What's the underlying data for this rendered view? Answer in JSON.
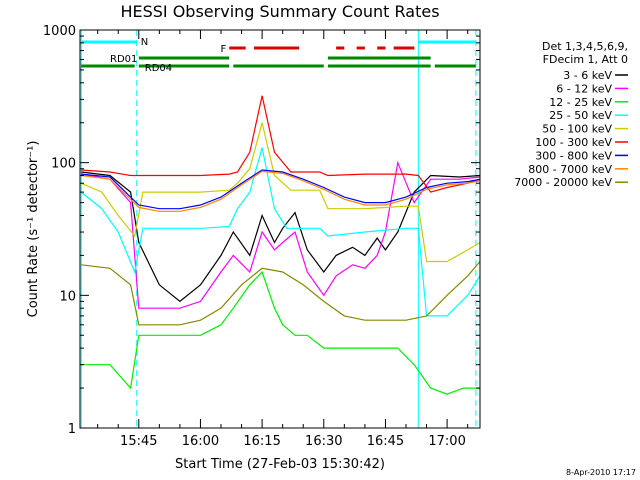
{
  "chart_data": {
    "type": "line",
    "title": "HESSI Observing Summary Count Rates",
    "xlabel": "Start Time (27-Feb-03 15:30:42)",
    "ylabel": "Count Rate (s⁻¹ detector⁻¹)",
    "yscale": "log",
    "ylim": [
      1,
      1000
    ],
    "xlim": [
      "15:30:42",
      "17:08"
    ],
    "grid": false,
    "legend_position": "right",
    "footer": "8-Apr-2010 17:17",
    "x_ticks": [
      "15:45",
      "16:00",
      "16:15",
      "16:30",
      "16:45",
      "17:00"
    ],
    "y_ticks": [
      "1",
      "10",
      "100",
      "1000"
    ],
    "legend_header": [
      "Det 1,3,4,5,6,9,",
      "FDecim 1, Att 0"
    ],
    "annotations": {
      "N": "N",
      "RD01": "RD01",
      "RD04": "RD04",
      "F": "F"
    },
    "series": [
      {
        "name": "3 - 6 keV",
        "color": "#000000",
        "points": [
          [
            "15:31",
            85
          ],
          [
            "15:38",
            80
          ],
          [
            "15:43",
            60
          ],
          [
            "15:45",
            25
          ],
          [
            "15:50",
            12
          ],
          [
            "15:55",
            9
          ],
          [
            "16:00",
            12
          ],
          [
            "16:05",
            20
          ],
          [
            "16:08",
            30
          ],
          [
            "16:12",
            20
          ],
          [
            "16:15",
            40
          ],
          [
            "16:18",
            25
          ],
          [
            "16:20",
            32
          ],
          [
            "16:23",
            42
          ],
          [
            "16:26",
            22
          ],
          [
            "16:30",
            15
          ],
          [
            "16:33",
            20
          ],
          [
            "16:37",
            23
          ],
          [
            "16:40",
            20
          ],
          [
            "16:43",
            27
          ],
          [
            "16:45",
            22
          ],
          [
            "16:48",
            30
          ],
          [
            "16:52",
            60
          ],
          [
            "16:56",
            80
          ],
          [
            "17:03",
            78
          ],
          [
            "17:08",
            80
          ]
        ]
      },
      {
        "name": "6 - 12 keV",
        "color": "#ff00ff",
        "points": [
          [
            "15:31",
            82
          ],
          [
            "15:38",
            75
          ],
          [
            "15:43",
            50
          ],
          [
            "15:45",
            8
          ],
          [
            "15:50",
            8
          ],
          [
            "15:55",
            8
          ],
          [
            "16:00",
            9
          ],
          [
            "16:05",
            15
          ],
          [
            "16:08",
            20
          ],
          [
            "16:12",
            15
          ],
          [
            "16:15",
            30
          ],
          [
            "16:18",
            22
          ],
          [
            "16:20",
            25
          ],
          [
            "16:23",
            30
          ],
          [
            "16:26",
            15
          ],
          [
            "16:30",
            10
          ],
          [
            "16:33",
            14
          ],
          [
            "16:37",
            17
          ],
          [
            "16:40",
            16
          ],
          [
            "16:43",
            20
          ],
          [
            "16:45",
            30
          ],
          [
            "16:48",
            100
          ],
          [
            "16:52",
            50
          ],
          [
            "16:56",
            75
          ],
          [
            "17:03",
            75
          ],
          [
            "17:08",
            78
          ]
        ]
      },
      {
        "name": "12 - 25 keV",
        "color": "#00ee00",
        "points": [
          [
            "15:31",
            3
          ],
          [
            "15:38",
            3
          ],
          [
            "15:43",
            2
          ],
          [
            "15:45",
            5
          ],
          [
            "15:50",
            5
          ],
          [
            "15:55",
            5
          ],
          [
            "16:00",
            5
          ],
          [
            "16:05",
            6
          ],
          [
            "16:08",
            8
          ],
          [
            "16:12",
            12
          ],
          [
            "16:15",
            15
          ],
          [
            "16:18",
            8
          ],
          [
            "16:20",
            6
          ],
          [
            "16:23",
            5
          ],
          [
            "16:26",
            5
          ],
          [
            "16:30",
            4
          ],
          [
            "16:35",
            4
          ],
          [
            "16:40",
            4
          ],
          [
            "16:45",
            4
          ],
          [
            "16:48",
            4
          ],
          [
            "16:52",
            3
          ],
          [
            "16:56",
            2
          ],
          [
            "17:00",
            1.8
          ],
          [
            "17:04",
            2
          ],
          [
            "17:08",
            2
          ]
        ]
      },
      {
        "name": "25 - 50 keV",
        "color": "#00ffff",
        "points": [
          [
            "15:31",
            60
          ],
          [
            "15:36",
            45
          ],
          [
            "15:40",
            30
          ],
          [
            "15:44",
            15
          ],
          [
            "15:46",
            32
          ],
          [
            "15:55",
            32
          ],
          [
            "16:00",
            32
          ],
          [
            "16:07",
            33
          ],
          [
            "16:09",
            45
          ],
          [
            "16:12",
            60
          ],
          [
            "16:15",
            130
          ],
          [
            "16:18",
            45
          ],
          [
            "16:21",
            32
          ],
          [
            "16:29",
            32
          ],
          [
            "16:31",
            28
          ],
          [
            "16:40",
            30
          ],
          [
            "16:50",
            32
          ],
          [
            "16:53",
            32
          ],
          [
            "16:55",
            7
          ],
          [
            "17:00",
            7
          ],
          [
            "17:05",
            10
          ],
          [
            "17:08",
            14
          ]
        ]
      },
      {
        "name": "50 - 100 keV",
        "color": "#cccc00",
        "points": [
          [
            "15:31",
            70
          ],
          [
            "15:36",
            60
          ],
          [
            "15:40",
            40
          ],
          [
            "15:44",
            28
          ],
          [
            "15:46",
            60
          ],
          [
            "15:55",
            60
          ],
          [
            "16:00",
            60
          ],
          [
            "16:07",
            62
          ],
          [
            "16:09",
            70
          ],
          [
            "16:12",
            90
          ],
          [
            "16:15",
            200
          ],
          [
            "16:18",
            80
          ],
          [
            "16:22",
            62
          ],
          [
            "16:29",
            62
          ],
          [
            "16:31",
            45
          ],
          [
            "16:40",
            45
          ],
          [
            "16:50",
            47
          ],
          [
            "16:53",
            47
          ],
          [
            "16:55",
            18
          ],
          [
            "17:00",
            18
          ],
          [
            "17:05",
            22
          ],
          [
            "17:08",
            25
          ]
        ]
      },
      {
        "name": "100 - 300 keV",
        "color": "#ff0000",
        "points": [
          [
            "15:31",
            88
          ],
          [
            "15:38",
            85
          ],
          [
            "15:43",
            80
          ],
          [
            "15:46",
            80
          ],
          [
            "15:55",
            80
          ],
          [
            "16:00",
            80
          ],
          [
            "16:07",
            82
          ],
          [
            "16:09",
            85
          ],
          [
            "16:12",
            120
          ],
          [
            "16:15",
            320
          ],
          [
            "16:18",
            120
          ],
          [
            "16:22",
            85
          ],
          [
            "16:29",
            85
          ],
          [
            "16:31",
            80
          ],
          [
            "16:40",
            82
          ],
          [
            "16:50",
            82
          ],
          [
            "16:53",
            80
          ],
          [
            "16:56",
            60
          ],
          [
            "17:00",
            65
          ],
          [
            "17:05",
            70
          ],
          [
            "17:08",
            75
          ]
        ]
      },
      {
        "name": "300 - 800 keV",
        "color": "#0000ff",
        "points": [
          [
            "15:31",
            82
          ],
          [
            "15:38",
            78
          ],
          [
            "15:45",
            48
          ],
          [
            "15:50",
            45
          ],
          [
            "15:55",
            45
          ],
          [
            "16:00",
            48
          ],
          [
            "16:05",
            55
          ],
          [
            "16:10",
            70
          ],
          [
            "16:15",
            88
          ],
          [
            "16:20",
            85
          ],
          [
            "16:25",
            75
          ],
          [
            "16:30",
            65
          ],
          [
            "16:35",
            55
          ],
          [
            "16:40",
            50
          ],
          [
            "16:45",
            50
          ],
          [
            "16:50",
            55
          ],
          [
            "16:55",
            65
          ],
          [
            "17:00",
            70
          ],
          [
            "17:05",
            72
          ],
          [
            "17:08",
            75
          ]
        ]
      },
      {
        "name": "800 - 7000 keV",
        "color": "#ff8800",
        "points": [
          [
            "15:31",
            80
          ],
          [
            "15:38",
            75
          ],
          [
            "15:45",
            46
          ],
          [
            "15:50",
            43
          ],
          [
            "15:55",
            43
          ],
          [
            "16:00",
            46
          ],
          [
            "16:05",
            53
          ],
          [
            "16:10",
            68
          ],
          [
            "16:15",
            86
          ],
          [
            "16:20",
            83
          ],
          [
            "16:25",
            73
          ],
          [
            "16:30",
            63
          ],
          [
            "16:35",
            53
          ],
          [
            "16:40",
            48
          ],
          [
            "16:45",
            48
          ],
          [
            "16:50",
            53
          ],
          [
            "16:55",
            63
          ],
          [
            "17:00",
            68
          ],
          [
            "17:05",
            70
          ],
          [
            "17:08",
            73
          ]
        ]
      },
      {
        "name": "7000 - 20000 keV",
        "color": "#888800",
        "points": [
          [
            "15:31",
            17
          ],
          [
            "15:38",
            16
          ],
          [
            "15:43",
            12
          ],
          [
            "15:45",
            6
          ],
          [
            "15:50",
            6
          ],
          [
            "15:55",
            6
          ],
          [
            "16:00",
            6.5
          ],
          [
            "16:05",
            8
          ],
          [
            "16:10",
            12
          ],
          [
            "16:15",
            16
          ],
          [
            "16:20",
            15
          ],
          [
            "16:25",
            12
          ],
          [
            "16:30",
            9
          ],
          [
            "16:35",
            7
          ],
          [
            "16:40",
            6.5
          ],
          [
            "16:45",
            6.5
          ],
          [
            "16:50",
            6.5
          ],
          [
            "16:55",
            7
          ],
          [
            "17:00",
            10
          ],
          [
            "17:05",
            14
          ],
          [
            "17:08",
            18
          ]
        ]
      }
    ]
  }
}
